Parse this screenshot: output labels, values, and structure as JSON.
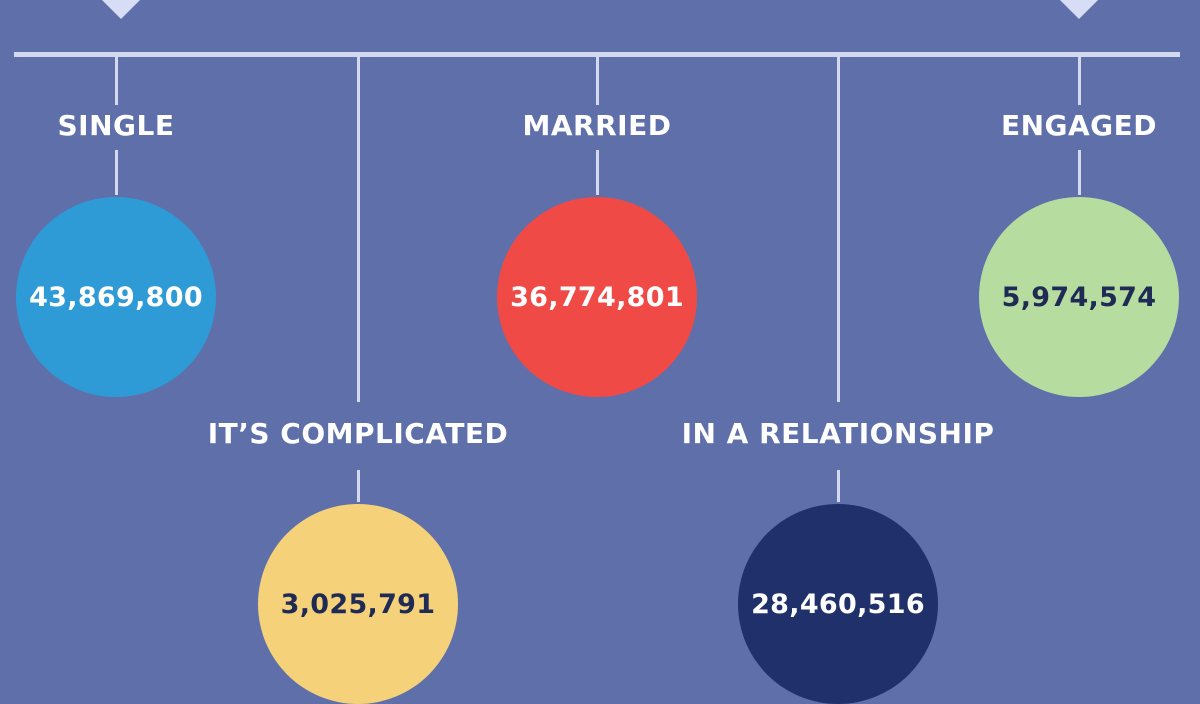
{
  "chart_data": {
    "type": "bubble",
    "title": "",
    "categories": [
      "SINGLE",
      "IT'S COMPLICATED",
      "MARRIED",
      "IN A RELATIONSHIP",
      "ENGAGED"
    ],
    "values": [
      43869800,
      3025791,
      36774801,
      28460516,
      5974574
    ],
    "items": [
      {
        "key": "single",
        "label": "SINGLE",
        "value_text": "43,869,800",
        "color": "#2f9bd6",
        "text_color": "#ffffff"
      },
      {
        "key": "complicated",
        "label": "IT’S COMPLICATED",
        "value_text": "3,025,791",
        "color": "#f5d27a",
        "text_color": "#1f2a55"
      },
      {
        "key": "married",
        "label": "MARRIED",
        "value_text": "36,774,801",
        "color": "#f04a47",
        "text_color": "#ffffff"
      },
      {
        "key": "relationship",
        "label": "IN A RELATIONSHIP",
        "value_text": "28,460,516",
        "color": "#20306a",
        "text_color": "#ffffff"
      },
      {
        "key": "engaged",
        "label": "ENGAGED",
        "value_text": "5,974,574",
        "color": "#b7dca0",
        "text_color": "#1f2a55"
      }
    ]
  },
  "colors": {
    "background": "#5e6faa",
    "line": "#d3daf0"
  }
}
